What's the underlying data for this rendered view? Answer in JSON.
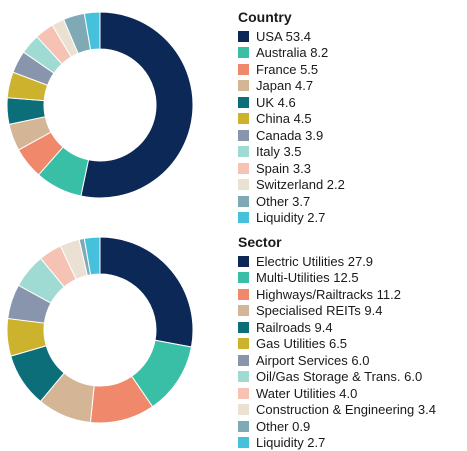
{
  "chart_data": [
    {
      "type": "pie",
      "title": "Country",
      "categories": [
        "USA",
        "Australia",
        "France",
        "Japan",
        "UK",
        "China",
        "Canada",
        "Italy",
        "Spain",
        "Switzerland",
        "Other",
        "Liquidity"
      ],
      "values": [
        53.4,
        8.2,
        5.5,
        4.7,
        4.6,
        4.5,
        3.9,
        3.5,
        3.3,
        2.2,
        3.7,
        2.7
      ],
      "colors": [
        "#0b2857",
        "#38bfa6",
        "#f0896b",
        "#d4b696",
        "#0b6e78",
        "#cdb22e",
        "#8895ad",
        "#9fdbd2",
        "#f5c2b4",
        "#ebe1d3",
        "#7ea9b5",
        "#45c1dc"
      ],
      "legend_labels": [
        "USA 53.4",
        "Australia 8.2",
        "France 5.5",
        "Japan 4.7",
        "UK 4.6",
        "China 4.5",
        "Canada 3.9",
        "Italy 3.5",
        "Spain 3.3",
        "Switzerland 2.2",
        "Other 3.7",
        "Liquidity 2.7"
      ],
      "legend_placement": "right"
    },
    {
      "type": "pie",
      "title": "Sector",
      "categories": [
        "Electric Utilities",
        "Multi-Utilities",
        "Highways/Railtracks",
        "Specialised REITs",
        "Railroads",
        "Gas Utilities",
        "Airport Services",
        "Oil/Gas Storage & Trans.",
        "Water Utilities",
        "Construction & Engineering",
        "Other",
        "Liquidity"
      ],
      "values": [
        27.9,
        12.5,
        11.2,
        9.4,
        9.4,
        6.5,
        6.0,
        6.0,
        4.0,
        3.4,
        0.9,
        2.7
      ],
      "colors": [
        "#0b2857",
        "#38bfa6",
        "#f0896b",
        "#d4b696",
        "#0b6e78",
        "#cdb22e",
        "#8895ad",
        "#9fdbd2",
        "#f5c2b4",
        "#ebe1d3",
        "#7ea9b5",
        "#45c1dc"
      ],
      "legend_labels": [
        "Electric Utilities 27.9",
        "Multi-Utilities 12.5",
        "Highways/Railtracks 11.2",
        "Specialised REITs 9.4",
        "Railroads 9.4",
        "Gas Utilities 6.5",
        "Airport Services 6.0",
        "Oil/Gas Storage & Trans. 6.0",
        "Water Utilities 4.0",
        "Construction & Engineering 3.4",
        "Other 0.9",
        "Liquidity 2.7"
      ],
      "legend_placement": "right"
    }
  ]
}
